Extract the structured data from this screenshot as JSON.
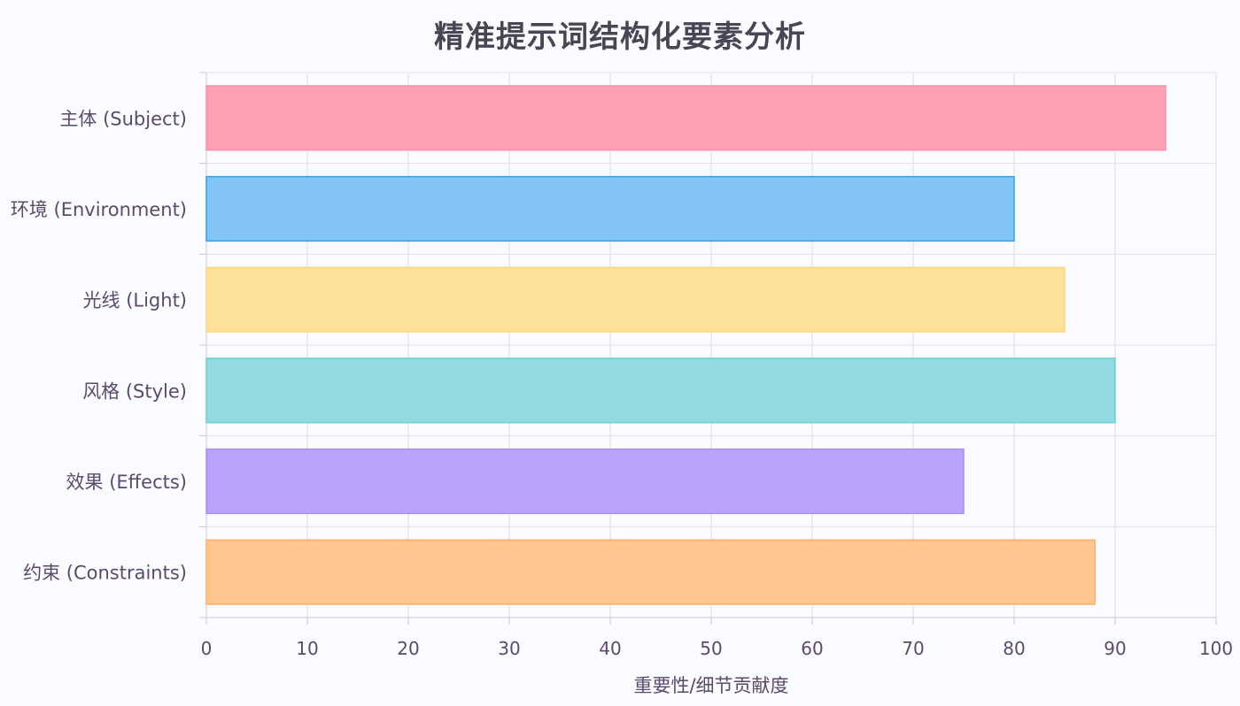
{
  "chart_data": {
    "type": "bar",
    "orientation": "horizontal",
    "title": "精准提示词结构化要素分析",
    "xlabel": "重要性/细节贡献度",
    "ylabel": "",
    "xlim": [
      0,
      100
    ],
    "ticks": [
      "0",
      "10",
      "20",
      "30",
      "40",
      "50",
      "60",
      "70",
      "80",
      "90",
      "100"
    ],
    "grid": true,
    "categories": [
      "主体 (Subject)",
      "环境 (Environment)",
      "光线 (Light)",
      "风格 (Style)",
      "效果 (Effects)",
      "约束 (Constraints)"
    ],
    "values": [
      95,
      80,
      85,
      90,
      75,
      88
    ],
    "colors": [
      "#ffa0b4",
      "#82c4f5",
      "#fde199",
      "#91dadf",
      "#bba3fb",
      "#ffc690"
    ],
    "border_colors": [
      "#ff8fa8",
      "#3a9de6",
      "#fcd67a",
      "#6ccfd3",
      "#a98cf7",
      "#ffad62"
    ]
  }
}
